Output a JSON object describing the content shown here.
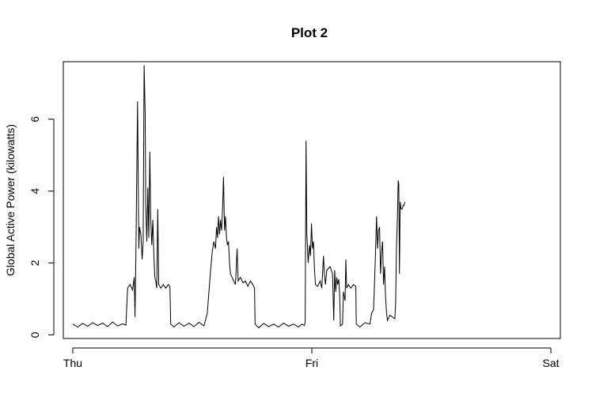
{
  "chart_data": {
    "type": "line",
    "title": "Plot 2",
    "xlabel": "",
    "ylabel": "Global Active Power (kilowatts)",
    "x_ticks": [
      {
        "value": 0,
        "label": "Thu"
      },
      {
        "value": 1440,
        "label": "Fri"
      },
      {
        "value": 2880,
        "label": "Sat"
      }
    ],
    "y_ticks": [
      {
        "value": 0,
        "label": "0"
      },
      {
        "value": 2,
        "label": "2"
      },
      {
        "value": 4,
        "label": "4"
      },
      {
        "value": 6,
        "label": "6"
      }
    ],
    "xlim": [
      -57,
      2937
    ],
    "ylim": [
      -0.1,
      7.6
    ],
    "grid": false,
    "legend": "none",
    "series_color": "#000000",
    "series": [
      {
        "values": [
          [
            0,
            0.3
          ],
          [
            30,
            0.22
          ],
          [
            60,
            0.32
          ],
          [
            90,
            0.24
          ],
          [
            120,
            0.34
          ],
          [
            150,
            0.26
          ],
          [
            180,
            0.33
          ],
          [
            210,
            0.23
          ],
          [
            240,
            0.36
          ],
          [
            270,
            0.25
          ],
          [
            300,
            0.31
          ],
          [
            320,
            0.27
          ],
          [
            330,
            1.3
          ],
          [
            345,
            1.4
          ],
          [
            360,
            1.25
          ],
          [
            370,
            1.6
          ],
          [
            375,
            0.5
          ],
          [
            380,
            2.2
          ],
          [
            390,
            6.5
          ],
          [
            398,
            2.4
          ],
          [
            402,
            3.0
          ],
          [
            410,
            2.8
          ],
          [
            418,
            2.1
          ],
          [
            424,
            2.6
          ],
          [
            430,
            7.5
          ],
          [
            436,
            6.2
          ],
          [
            440,
            3.6
          ],
          [
            446,
            2.6
          ],
          [
            452,
            4.1
          ],
          [
            458,
            2.7
          ],
          [
            464,
            5.1
          ],
          [
            470,
            3.2
          ],
          [
            476,
            2.5
          ],
          [
            482,
            3.2
          ],
          [
            488,
            2.3
          ],
          [
            494,
            1.6
          ],
          [
            500,
            1.5
          ],
          [
            506,
            1.3
          ],
          [
            512,
            3.5
          ],
          [
            518,
            1.4
          ],
          [
            530,
            1.3
          ],
          [
            545,
            1.4
          ],
          [
            560,
            1.3
          ],
          [
            575,
            1.4
          ],
          [
            585,
            1.35
          ],
          [
            590,
            0.3
          ],
          [
            610,
            0.22
          ],
          [
            640,
            0.34
          ],
          [
            670,
            0.24
          ],
          [
            700,
            0.33
          ],
          [
            730,
            0.23
          ],
          [
            760,
            0.35
          ],
          [
            790,
            0.25
          ],
          [
            810,
            0.6
          ],
          [
            820,
            1.2
          ],
          [
            830,
            1.8
          ],
          [
            840,
            2.3
          ],
          [
            850,
            2.6
          ],
          [
            860,
            2.4
          ],
          [
            866,
            3.0
          ],
          [
            872,
            2.7
          ],
          [
            878,
            3.3
          ],
          [
            884,
            2.8
          ],
          [
            890,
            3.2
          ],
          [
            896,
            2.9
          ],
          [
            902,
            3.5
          ],
          [
            908,
            4.4
          ],
          [
            914,
            2.9
          ],
          [
            920,
            3.3
          ],
          [
            926,
            2.7
          ],
          [
            932,
            2.5
          ],
          [
            938,
            2.6
          ],
          [
            944,
            2.0
          ],
          [
            950,
            1.7
          ],
          [
            960,
            1.6
          ],
          [
            970,
            1.5
          ],
          [
            980,
            1.4
          ],
          [
            990,
            2.4
          ],
          [
            996,
            1.5
          ],
          [
            1010,
            1.6
          ],
          [
            1025,
            1.45
          ],
          [
            1040,
            1.5
          ],
          [
            1055,
            1.35
          ],
          [
            1070,
            1.5
          ],
          [
            1085,
            1.4
          ],
          [
            1095,
            1.3
          ],
          [
            1098,
            0.3
          ],
          [
            1120,
            0.2
          ],
          [
            1150,
            0.32
          ],
          [
            1180,
            0.23
          ],
          [
            1210,
            0.3
          ],
          [
            1240,
            0.22
          ],
          [
            1270,
            0.33
          ],
          [
            1300,
            0.24
          ],
          [
            1330,
            0.3
          ],
          [
            1360,
            0.22
          ],
          [
            1380,
            0.3
          ],
          [
            1395,
            0.26
          ],
          [
            1400,
            0.35
          ],
          [
            1405,
            5.4
          ],
          [
            1410,
            2.8
          ],
          [
            1418,
            2.0
          ],
          [
            1426,
            2.5
          ],
          [
            1432,
            2.2
          ],
          [
            1438,
            3.1
          ],
          [
            1444,
            2.4
          ],
          [
            1450,
            2.6
          ],
          [
            1456,
            1.8
          ],
          [
            1462,
            1.4
          ],
          [
            1475,
            1.35
          ],
          [
            1490,
            1.5
          ],
          [
            1500,
            1.3
          ],
          [
            1510,
            2.2
          ],
          [
            1516,
            1.7
          ],
          [
            1522,
            1.4
          ],
          [
            1530,
            1.8
          ],
          [
            1550,
            1.9
          ],
          [
            1565,
            1.7
          ],
          [
            1572,
            0.4
          ],
          [
            1578,
            1.8
          ],
          [
            1584,
            1.2
          ],
          [
            1590,
            1.6
          ],
          [
            1596,
            1.4
          ],
          [
            1602,
            1.55
          ],
          [
            1608,
            1.1
          ],
          [
            1612,
            0.25
          ],
          [
            1625,
            0.3
          ],
          [
            1630,
            1.2
          ],
          [
            1640,
            0.95
          ],
          [
            1645,
            2.1
          ],
          [
            1650,
            1.3
          ],
          [
            1660,
            1.4
          ],
          [
            1675,
            1.3
          ],
          [
            1690,
            1.4
          ],
          [
            1705,
            1.35
          ],
          [
            1708,
            0.3
          ],
          [
            1730,
            0.22
          ],
          [
            1760,
            0.34
          ],
          [
            1790,
            0.3
          ],
          [
            1800,
            0.6
          ],
          [
            1812,
            0.7
          ],
          [
            1818,
            1.5
          ],
          [
            1824,
            2.3
          ],
          [
            1830,
            3.3
          ],
          [
            1836,
            2.4
          ],
          [
            1842,
            2.9
          ],
          [
            1848,
            3.0
          ],
          [
            1854,
            1.7
          ],
          [
            1860,
            2.3
          ],
          [
            1866,
            2.6
          ],
          [
            1872,
            1.4
          ],
          [
            1878,
            1.9
          ],
          [
            1884,
            1.1
          ],
          [
            1890,
            0.6
          ],
          [
            1896,
            0.4
          ],
          [
            1910,
            0.55
          ],
          [
            1925,
            0.5
          ],
          [
            1940,
            0.45
          ],
          [
            1945,
            0.9
          ],
          [
            1950,
            2.5
          ],
          [
            1956,
            3.3
          ],
          [
            1960,
            4.3
          ],
          [
            1964,
            4.2
          ],
          [
            1968,
            1.7
          ],
          [
            1972,
            3.7
          ],
          [
            1978,
            3.5
          ],
          [
            1984,
            3.5
          ],
          [
            1990,
            3.6
          ],
          [
            1996,
            3.6
          ],
          [
            2000,
            3.7
          ]
        ]
      }
    ]
  }
}
